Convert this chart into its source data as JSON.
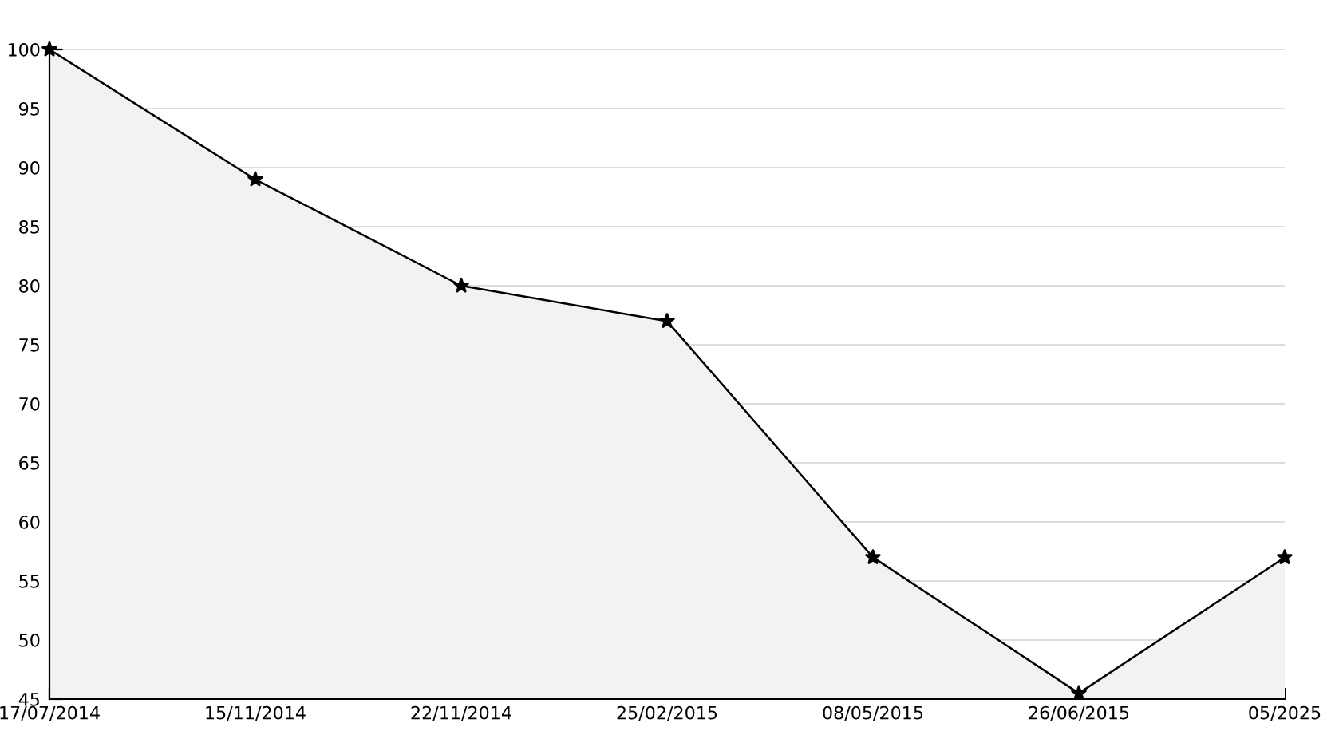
{
  "chart_data": {
    "type": "area",
    "categories": [
      "17/07/2014",
      "15/11/2014",
      "22/11/2014",
      "25/02/2015",
      "08/05/2015",
      "26/06/2015",
      "05/2025"
    ],
    "series": [
      {
        "color": "#f2f2f2",
        "values": [
          100,
          89,
          80,
          77,
          57,
          45.5,
          57
        ]
      }
    ],
    "ylim": [
      45,
      100
    ],
    "yticks": [
      45,
      50,
      55,
      60,
      65,
      70,
      75,
      80,
      85,
      90,
      95,
      100
    ],
    "grid": "y",
    "marker": "star",
    "line_style": "solid",
    "legend": false
  }
}
